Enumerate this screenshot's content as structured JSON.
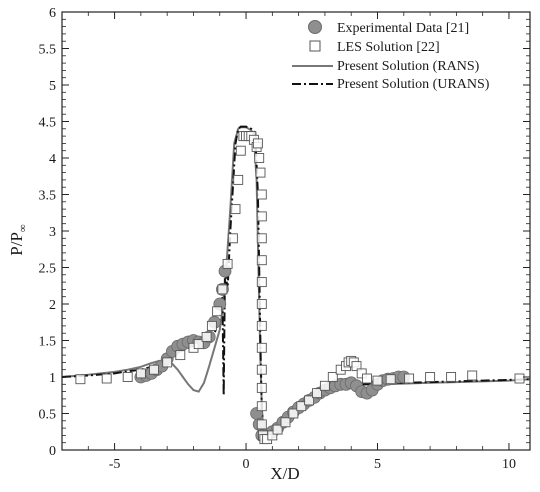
{
  "chart_data": {
    "type": "line",
    "xlabel": "X/D",
    "ylabel_main": "P/P",
    "ylabel_sub": "∞",
    "xlim": [
      -7,
      10.8
    ],
    "ylim": [
      0,
      6
    ],
    "xticks": [
      -5,
      0,
      5,
      10
    ],
    "xtick_labels": [
      "-5",
      "0",
      "5",
      "10"
    ],
    "yticks": [
      0,
      0.5,
      1,
      1.5,
      2,
      2.5,
      3,
      3.5,
      4,
      4.5,
      5,
      5.5,
      6
    ],
    "ytick_labels": [
      "0",
      "0.5",
      "1",
      "1.5",
      "2",
      "2.5",
      "3",
      "3.5",
      "4",
      "4.5",
      "5",
      "5.5",
      "6"
    ],
    "legend_position": "top-right",
    "colors": {
      "experimental": "#8f8f8f",
      "les": "#555555",
      "rans": "#777777",
      "urans": "#111111",
      "axis": "#222222"
    },
    "series": [
      {
        "name": "Experimental Data [21]",
        "marker": "circle",
        "x": [
          -4.0,
          -3.8,
          -3.6,
          -3.4,
          -3.2,
          -3.0,
          -2.8,
          -2.6,
          -2.4,
          -2.2,
          -2.0,
          -1.8,
          -1.6,
          -1.4,
          -1.2,
          -1.0,
          -0.9,
          -0.8,
          0.4,
          0.5,
          0.6,
          0.7,
          0.8,
          1.0,
          1.2,
          1.4,
          1.6,
          1.8,
          2.0,
          2.2,
          2.4,
          2.6,
          2.8,
          3.0,
          3.2,
          3.4,
          3.6,
          3.8,
          4.0,
          4.2,
          4.4,
          4.6,
          4.8,
          5.0,
          5.2,
          5.4,
          5.6,
          5.8,
          6.0
        ],
        "y": [
          1.0,
          1.02,
          1.05,
          1.1,
          1.15,
          1.25,
          1.35,
          1.42,
          1.45,
          1.48,
          1.5,
          1.48,
          1.47,
          1.55,
          1.75,
          2.0,
          2.2,
          2.45,
          0.5,
          0.35,
          0.2,
          0.18,
          0.2,
          0.25,
          0.3,
          0.38,
          0.45,
          0.52,
          0.58,
          0.63,
          0.68,
          0.72,
          0.78,
          0.82,
          0.85,
          0.88,
          0.9,
          0.9,
          0.92,
          0.88,
          0.8,
          0.78,
          0.82,
          0.9,
          0.95,
          0.97,
          0.98,
          1.0,
          1.0
        ]
      },
      {
        "name": "LES Solution [22]",
        "marker": "square",
        "x": [
          -6.3,
          -5.3,
          -4.5,
          -4.0,
          -3.5,
          -3.0,
          -2.5,
          -2.0,
          -1.8,
          -1.5,
          -1.3,
          -1.1,
          -0.9,
          -0.7,
          -0.5,
          -0.4,
          -0.3,
          -0.2,
          -0.1,
          0.0,
          0.1,
          0.2,
          0.3,
          0.4,
          0.45,
          0.5,
          0.55,
          0.6,
          0.6,
          0.6,
          0.6,
          0.6,
          0.6,
          0.6,
          0.6,
          0.6,
          0.6,
          0.6,
          0.6,
          0.65,
          0.7,
          0.8,
          1.0,
          1.2,
          1.5,
          1.8,
          2.1,
          2.4,
          2.7,
          3.0,
          3.3,
          3.6,
          3.8,
          3.9,
          4.0,
          4.1,
          4.2,
          4.4,
          4.6,
          5.0,
          5.5,
          6.2,
          7.0,
          7.8,
          8.6,
          10.4
        ],
        "y": [
          0.97,
          0.98,
          1.0,
          1.05,
          1.1,
          1.2,
          1.3,
          1.4,
          1.45,
          1.55,
          1.7,
          1.9,
          2.2,
          2.55,
          2.9,
          3.3,
          3.7,
          4.1,
          4.3,
          4.3,
          4.3,
          4.3,
          4.25,
          4.15,
          4.2,
          4.0,
          3.8,
          3.5,
          3.2,
          2.9,
          2.6,
          2.3,
          2.0,
          1.7,
          1.4,
          1.1,
          0.85,
          0.6,
          0.35,
          0.2,
          0.15,
          0.15,
          0.2,
          0.28,
          0.38,
          0.5,
          0.6,
          0.68,
          0.78,
          0.88,
          1.0,
          1.1,
          1.15,
          1.2,
          1.22,
          1.2,
          1.15,
          1.05,
          0.98,
          0.95,
          0.97,
          0.98,
          1.0,
          1.0,
          1.02,
          0.98
        ]
      },
      {
        "name": "Present Solution (RANS)",
        "style": "solid",
        "x": [
          -7.0,
          -6.0,
          -5.0,
          -4.5,
          -4.0,
          -3.6,
          -3.3,
          -3.0,
          -2.8,
          -2.6,
          -2.4,
          -2.2,
          -2.0,
          -1.8,
          -1.6,
          -1.4,
          -1.2,
          -1.0,
          -0.9,
          -0.75,
          -0.6,
          -0.45,
          -0.3,
          -0.2,
          0.0,
          0.2,
          0.3,
          0.4,
          0.5,
          0.55,
          0.6,
          0.65,
          0.7,
          0.8,
          1.0,
          1.2,
          1.5,
          2.0,
          2.5,
          3.0,
          3.5,
          4.0,
          5.0,
          6.0,
          7.0,
          8.0,
          9.0,
          10.0,
          10.8
        ],
        "y": [
          1.0,
          1.03,
          1.07,
          1.1,
          1.14,
          1.19,
          1.22,
          1.22,
          1.18,
          1.1,
          1.0,
          0.9,
          0.82,
          0.8,
          0.92,
          1.15,
          1.4,
          1.65,
          1.9,
          2.5,
          3.3,
          4.2,
          4.4,
          4.42,
          4.42,
          4.38,
          4.3,
          3.7,
          2.0,
          1.2,
          0.6,
          0.3,
          0.18,
          0.18,
          0.23,
          0.3,
          0.42,
          0.6,
          0.72,
          0.8,
          0.86,
          0.89,
          0.9,
          0.91,
          0.92,
          0.93,
          0.94,
          0.95,
          0.97
        ]
      },
      {
        "name": "Present Solution (URANS)",
        "style": "dashdot",
        "x": [
          -7.0,
          -6.0,
          -5.0,
          -4.5,
          -4.0,
          -3.5,
          -3.0,
          -2.5,
          -2.2,
          -2.0,
          -1.8,
          -1.6,
          -1.4,
          -1.2,
          -1.0,
          -0.9,
          -0.85,
          -0.8,
          -0.7,
          -0.6,
          -0.5,
          -0.4,
          -0.3,
          -0.2,
          0.0,
          0.2,
          0.35,
          0.45,
          0.5,
          0.55,
          0.6,
          0.7,
          0.8,
          1.0,
          1.3,
          1.6,
          2.0,
          2.5,
          3.0,
          3.5,
          4.0,
          4.5,
          5.0,
          6.0,
          7.0,
          8.0,
          9.0,
          10.0,
          10.8
        ],
        "y": [
          1.0,
          1.02,
          1.05,
          1.08,
          1.1,
          1.15,
          1.25,
          1.35,
          1.4,
          1.42,
          1.44,
          1.45,
          1.48,
          1.6,
          1.8,
          2.1,
          0.75,
          2.5,
          2.2,
          3.0,
          3.6,
          4.2,
          4.4,
          4.43,
          4.43,
          4.4,
          4.35,
          3.5,
          2.5,
          1.4,
          0.55,
          0.2,
          0.12,
          0.18,
          0.3,
          0.4,
          0.55,
          0.68,
          0.78,
          0.85,
          0.88,
          0.9,
          0.91,
          0.92,
          0.93,
          0.94,
          0.95,
          0.96,
          0.97
        ]
      }
    ]
  }
}
